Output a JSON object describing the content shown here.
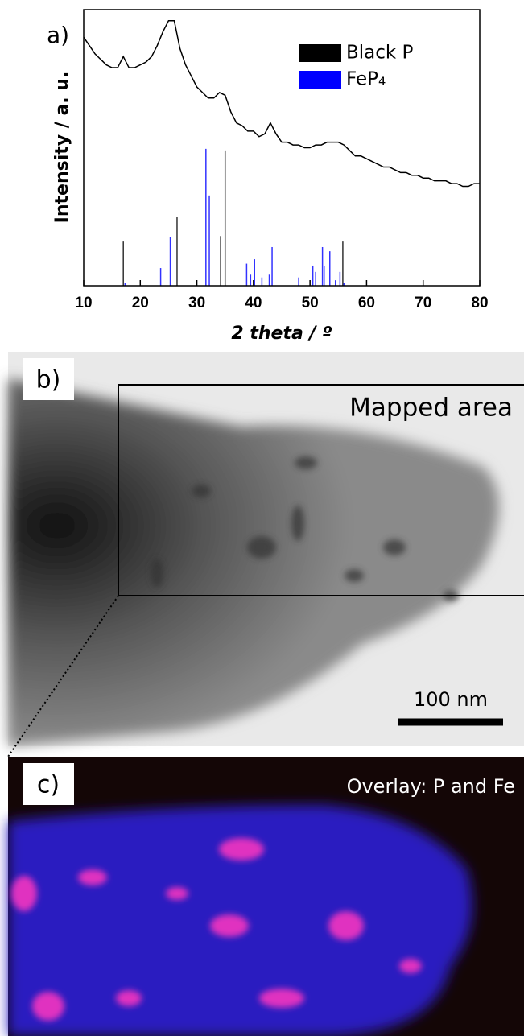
{
  "chart_data": {
    "type": "xrd",
    "panel_label": "a)",
    "xlabel": "2 theta / º",
    "ylabel": "Intensity / a. u.",
    "xlim": [
      10,
      80
    ],
    "ylim": [
      0,
      100
    ],
    "xticks": [
      10,
      20,
      30,
      40,
      50,
      60,
      70,
      80
    ],
    "measured": {
      "color": "#000000",
      "x": [
        10,
        11,
        12,
        13,
        14,
        15,
        16,
        17,
        18,
        19,
        20,
        21,
        22,
        23,
        24,
        25,
        26,
        27,
        28,
        29,
        30,
        31,
        32,
        33,
        34,
        35,
        36,
        37,
        38,
        39,
        40,
        41,
        42,
        43,
        44,
        45,
        46,
        47,
        48,
        49,
        50,
        51,
        52,
        53,
        54,
        55,
        56,
        57,
        58,
        59,
        60,
        61,
        62,
        63,
        64,
        65,
        66,
        67,
        68,
        69,
        70,
        71,
        72,
        73,
        74,
        75,
        76,
        77,
        78,
        79,
        80
      ],
      "values": [
        90,
        87,
        84,
        82,
        80,
        79,
        79,
        83,
        79,
        79,
        80,
        81,
        83,
        87,
        92,
        96,
        96,
        86,
        80,
        76,
        72,
        70,
        68,
        68,
        70,
        69,
        63,
        59,
        58,
        56,
        56,
        54,
        55,
        59,
        55,
        52,
        52,
        51,
        51,
        50,
        50,
        51,
        51,
        52,
        52,
        52,
        51,
        49,
        47,
        47,
        46,
        45,
        44,
        43,
        43,
        42,
        41,
        41,
        40,
        40,
        39,
        39,
        38,
        38,
        38,
        37,
        37,
        36,
        36,
        37,
        37
      ]
    },
    "series": [
      {
        "name": "Black P",
        "color": "#000000",
        "x": [
          17.0,
          26.5,
          34.2,
          35.0,
          55.8
        ],
        "values": [
          16,
          25,
          18,
          49,
          16
        ]
      },
      {
        "name": "FeP₄",
        "color": "#0000ff",
        "x": [
          17.3,
          23.6,
          25.3,
          31.6,
          32.2,
          38.8,
          39.5,
          40.2,
          41.5,
          42.8,
          43.3,
          48.0,
          50.5,
          51.0,
          52.2,
          52.5,
          53.5,
          54.5,
          55.3,
          56.0
        ],
        "values": [
          1,
          6.4,
          17.5,
          49.6,
          32.7,
          8,
          4,
          9.6,
          3,
          4,
          14,
          3,
          7.3,
          5,
          14,
          7,
          12.5,
          2,
          5,
          1
        ]
      }
    ]
  },
  "panel_b": {
    "label": "b)",
    "annotation": "Mapped area",
    "scale_bar": "100 nm"
  },
  "panel_c": {
    "label": "c)",
    "annotation": "Overlay: P and Fe"
  }
}
